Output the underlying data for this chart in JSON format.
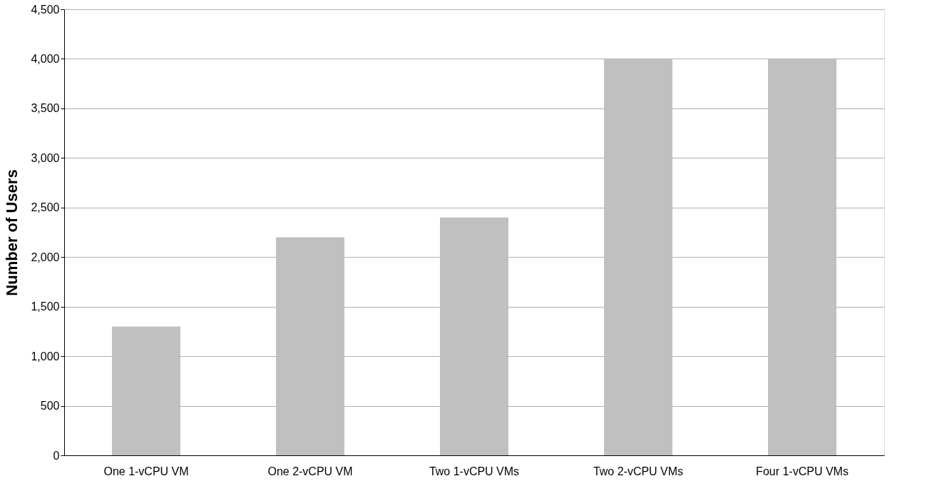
{
  "chart_data": {
    "type": "bar",
    "ylabel": "Number of Users",
    "categories": [
      "One 1-vCPU VM",
      "One 2-vCPU VM",
      "Two 1-vCPU VMs",
      "Two 2-vCPU VMs",
      "Four 1-vCPU VMs"
    ],
    "values": [
      1300,
      2200,
      2400,
      4000,
      4000
    ],
    "color": "#c0c0c0",
    "ylim": [
      0,
      4500
    ],
    "yticks": [
      0,
      500,
      {
        "value": 1000,
        "label": "1,000"
      },
      {
        "value": 1500,
        "label": "1,500"
      },
      {
        "value": 2000,
        "label": "2,000"
      },
      {
        "value": 2500,
        "label": "2,500"
      },
      {
        "value": 3000,
        "label": "3,000"
      },
      {
        "value": 3500,
        "label": "3,500"
      },
      {
        "value": 4000,
        "label": "4,000"
      },
      {
        "value": 4500,
        "label": "4,500"
      }
    ],
    "grid": "y"
  }
}
